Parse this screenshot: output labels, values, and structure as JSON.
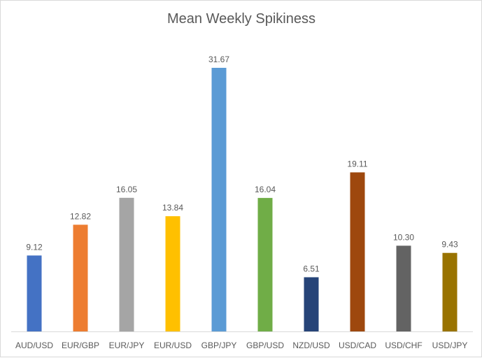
{
  "chart_data": {
    "type": "bar",
    "title": "Mean Weekly Spikiness",
    "xlabel": "",
    "ylabel": "",
    "ylim": [
      0,
      31.67
    ],
    "grid": false,
    "legend": "none",
    "categories": [
      "AUD/USD",
      "EUR/GBP",
      "EUR/JPY",
      "EUR/USD",
      "GBP/JPY",
      "GBP/USD",
      "NZD/USD",
      "USD/CAD",
      "USD/CHF",
      "USD/JPY"
    ],
    "values": [
      9.12,
      12.82,
      16.05,
      13.84,
      31.67,
      16.04,
      6.51,
      19.11,
      10.3,
      9.43
    ],
    "value_labels": [
      "9.12",
      "12.82",
      "16.05",
      "13.84",
      "31.67",
      "16.04",
      "6.51",
      "19.11",
      "10.30",
      "9.43"
    ],
    "colors": [
      "#4472c4",
      "#ed7d31",
      "#a5a5a5",
      "#ffc000",
      "#5b9bd5",
      "#70ad47",
      "#264478",
      "#9e480e",
      "#636363",
      "#997300"
    ]
  }
}
